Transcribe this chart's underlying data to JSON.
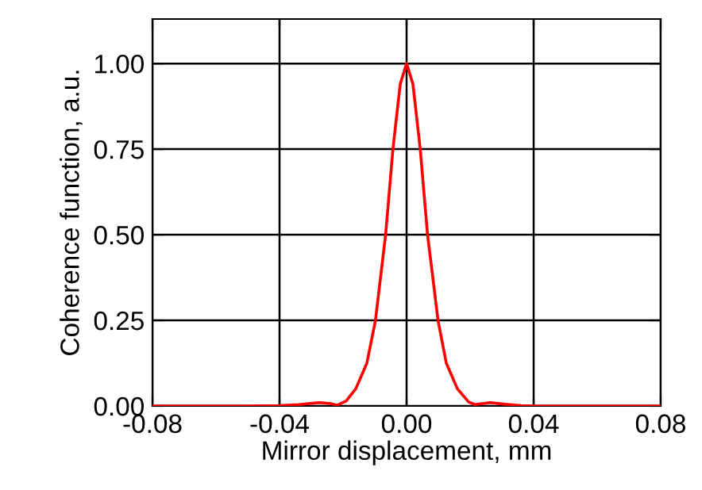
{
  "chart_data": {
    "type": "line",
    "xlabel": "Mirror displacement, mm",
    "ylabel": "Coherence function, a.u.",
    "x": [
      -0.08,
      -0.05,
      -0.04,
      -0.034,
      -0.0274,
      -0.024,
      -0.0218,
      -0.019,
      -0.016,
      -0.0125,
      -0.0098,
      -0.0066,
      -0.0043,
      -0.002,
      0,
      0.002,
      0.0043,
      0.0066,
      0.0099,
      0.0125,
      0.016,
      0.0195,
      0.0215,
      0.0263,
      0.031,
      0.036,
      0.04,
      0.05,
      0.08
    ],
    "series": [
      {
        "color": "#ff0000",
        "values": [
          0,
          0,
          0.001,
          0.004,
          0.01,
          0.007,
          0.002,
          0.015,
          0.05,
          0.125,
          0.25,
          0.5,
          0.75,
          0.94,
          1.0,
          0.94,
          0.75,
          0.5,
          0.25,
          0.125,
          0.05,
          0.012,
          0.004,
          0.01,
          0.005,
          0.001,
          0,
          0,
          0
        ]
      }
    ],
    "xlim": [
      -0.08,
      0.08
    ],
    "xticks": [
      {
        "value": -0.08,
        "label": "-0.08"
      },
      {
        "value": -0.04,
        "label": "-0.04"
      },
      {
        "value": 0,
        "label": "0.00"
      },
      {
        "value": 0.04,
        "label": "0.04"
      },
      {
        "value": 0.08,
        "label": "0.08"
      }
    ],
    "ylim": [
      0,
      1.13
    ],
    "yticks": [
      {
        "value": 0,
        "label": "0.00"
      },
      {
        "value": 0.25,
        "label": "0.25"
      },
      {
        "value": 0.5,
        "label": "0.50"
      },
      {
        "value": 0.75,
        "label": "0.75"
      },
      {
        "value": 1.0,
        "label": "1.00"
      }
    ],
    "grid": true,
    "marker": "none",
    "line_style": "solid"
  }
}
